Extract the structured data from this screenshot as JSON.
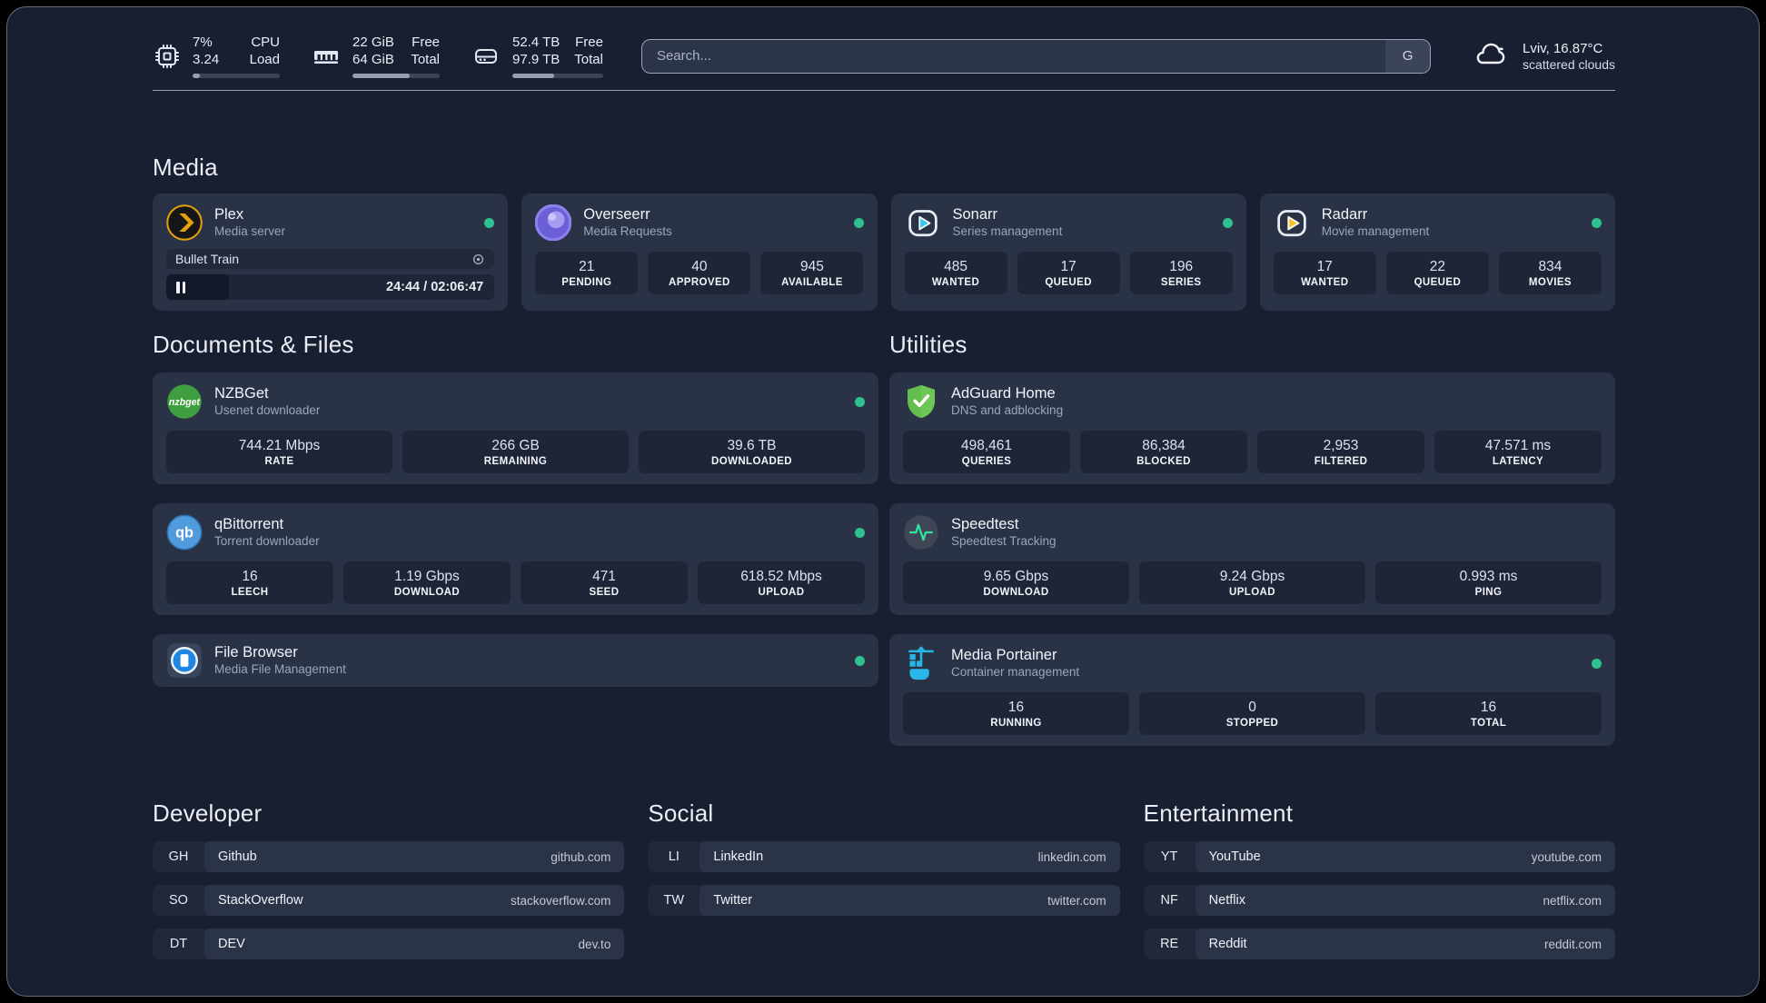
{
  "colors": {
    "page-bg": "#191f31",
    "card-bg": "#2a3245",
    "box-bg": "#1d2536",
    "badge-bg": "#202839",
    "row-bg": "#2b3447",
    "status-online": "#2fc08f",
    "divider": "#b6c0cf",
    "search-border": "#9aa3b5",
    "search-bg": "#2c3447",
    "search-badge-bg": "#3b4458",
    "progress-track": "#3c4456",
    "progress-fill": "#97a0b2",
    "plex-orange": "#e5a00d",
    "overseerr-purple": "#6a5fd6",
    "sonarr-blue": "#38c6f4",
    "radarr-yellow": "#fbc02d",
    "nzbget-green": "#3f9e3f",
    "qbittorrent-blue": "#4f9bdc",
    "filebrowser-blue": "#2086e3",
    "adguard-green": "#63bd4e",
    "speedtest-green": "#2ee59d",
    "portainer-cyan": "#29b6e8"
  },
  "topbar": {
    "system_stats": [
      {
        "icon": "cpu-icon",
        "value_top": "7%",
        "value_bottom": "3.24",
        "label_top": "CPU",
        "label_bottom": "Load",
        "progress_pct": 8
      },
      {
        "icon": "ram-icon",
        "value_top": "22 GiB",
        "value_bottom": "64 GiB",
        "label_top": "Free",
        "label_bottom": "Total",
        "progress_pct": 66
      },
      {
        "icon": "disk-icon",
        "value_top": "52.4 TB",
        "value_bottom": "97.9 TB",
        "label_top": "Free",
        "label_bottom": "Total",
        "progress_pct": 46
      }
    ],
    "search": {
      "placeholder": "Search...",
      "engine_badge": "G"
    },
    "weather": {
      "location_temp": "Lviv, 16.87°C",
      "condition": "scattered clouds"
    }
  },
  "media": {
    "title": "Media",
    "cards": [
      {
        "name": "Plex",
        "subtitle": "Media server",
        "online": true,
        "player": {
          "title": "Bullet Train",
          "time": "24:44 / 02:06:47",
          "progress_pct": 19,
          "state": "paused"
        }
      },
      {
        "name": "Overseerr",
        "subtitle": "Media Requests",
        "online": true,
        "stats": [
          {
            "value": "21",
            "label": "PENDING"
          },
          {
            "value": "40",
            "label": "APPROVED"
          },
          {
            "value": "945",
            "label": "AVAILABLE"
          }
        ]
      },
      {
        "name": "Sonarr",
        "subtitle": "Series management",
        "online": true,
        "stats": [
          {
            "value": "485",
            "label": "WANTED"
          },
          {
            "value": "17",
            "label": "QUEUED"
          },
          {
            "value": "196",
            "label": "SERIES"
          }
        ]
      },
      {
        "name": "Radarr",
        "subtitle": "Movie management",
        "online": true,
        "stats": [
          {
            "value": "17",
            "label": "WANTED"
          },
          {
            "value": "22",
            "label": "QUEUED"
          },
          {
            "value": "834",
            "label": "MOVIES"
          }
        ]
      }
    ]
  },
  "documents": {
    "title": "Documents & Files",
    "cards": [
      {
        "name": "NZBGet",
        "subtitle": "Usenet downloader",
        "online": true,
        "stats": [
          {
            "value": "744.21 Mbps",
            "label": "RATE"
          },
          {
            "value": "266 GB",
            "label": "REMAINING"
          },
          {
            "value": "39.6 TB",
            "label": "DOWNLOADED"
          }
        ]
      },
      {
        "name": "qBittorrent",
        "subtitle": "Torrent downloader",
        "online": true,
        "stats": [
          {
            "value": "16",
            "label": "LEECH"
          },
          {
            "value": "1.19 Gbps",
            "label": "DOWNLOAD"
          },
          {
            "value": "471",
            "label": "SEED"
          },
          {
            "value": "618.52 Mbps",
            "label": "UPLOAD"
          }
        ]
      },
      {
        "name": "File Browser",
        "subtitle": "Media File Management",
        "online": true
      }
    ]
  },
  "utilities": {
    "title": "Utilities",
    "cards": [
      {
        "name": "AdGuard Home",
        "subtitle": "DNS and adblocking",
        "online": false,
        "stats": [
          {
            "value": "498,461",
            "label": "QUERIES"
          },
          {
            "value": "86,384",
            "label": "BLOCKED"
          },
          {
            "value": "2,953",
            "label": "FILTERED"
          },
          {
            "value": "47.571 ms",
            "label": "LATENCY"
          }
        ]
      },
      {
        "name": "Speedtest",
        "subtitle": "Speedtest Tracking",
        "online": false,
        "stats": [
          {
            "value": "9.65 Gbps",
            "label": "DOWNLOAD"
          },
          {
            "value": "9.24 Gbps",
            "label": "UPLOAD"
          },
          {
            "value": "0.993 ms",
            "label": "PING"
          }
        ]
      },
      {
        "name": "Media Portainer",
        "subtitle": "Container management",
        "online": true,
        "stats": [
          {
            "value": "16",
            "label": "RUNNING"
          },
          {
            "value": "0",
            "label": "STOPPED"
          },
          {
            "value": "16",
            "label": "TOTAL"
          }
        ]
      }
    ]
  },
  "links": {
    "developer": {
      "title": "Developer",
      "items": [
        {
          "abbr": "GH",
          "name": "Github",
          "url": "github.com"
        },
        {
          "abbr": "SO",
          "name": "StackOverflow",
          "url": "stackoverflow.com"
        },
        {
          "abbr": "DT",
          "name": "DEV",
          "url": "dev.to"
        }
      ]
    },
    "social": {
      "title": "Social",
      "items": [
        {
          "abbr": "LI",
          "name": "LinkedIn",
          "url": "linkedin.com"
        },
        {
          "abbr": "TW",
          "name": "Twitter",
          "url": "twitter.com"
        }
      ]
    },
    "entertainment": {
      "title": "Entertainment",
      "items": [
        {
          "abbr": "YT",
          "name": "YouTube",
          "url": "youtube.com"
        },
        {
          "abbr": "NF",
          "name": "Netflix",
          "url": "netflix.com"
        },
        {
          "abbr": "RE",
          "name": "Reddit",
          "url": "reddit.com"
        }
      ]
    }
  }
}
